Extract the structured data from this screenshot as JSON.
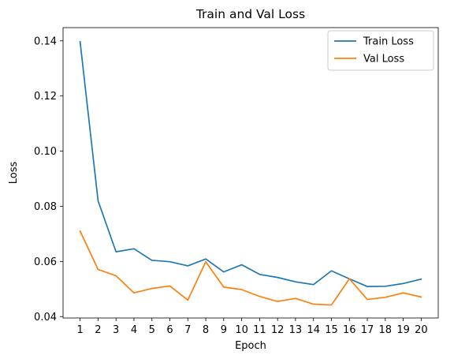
{
  "chart_data": {
    "type": "line",
    "title": "Train and Val Loss",
    "xlabel": "Epoch",
    "ylabel": "Loss",
    "x": [
      1,
      2,
      3,
      4,
      5,
      6,
      7,
      8,
      9,
      10,
      11,
      12,
      13,
      14,
      15,
      16,
      17,
      18,
      19,
      20
    ],
    "x_tick_labels": [
      "1",
      "2",
      "3",
      "4",
      "5",
      "6",
      "7",
      "8",
      "9",
      "10",
      "11",
      "12",
      "13",
      "14",
      "15",
      "16",
      "17",
      "18",
      "19",
      "20"
    ],
    "y_ticks": [
      0.04,
      0.06,
      0.08,
      0.1,
      0.12,
      0.14
    ],
    "y_tick_labels": [
      "0.04",
      "0.06",
      "0.08",
      "0.10",
      "0.12",
      "0.14"
    ],
    "xlim": [
      0.05,
      20.95
    ],
    "ylim": [
      0.0395,
      0.1448
    ],
    "grid": false,
    "legend_position": "top-right",
    "series": [
      {
        "name": "Train Loss",
        "color": "#1f77b4",
        "values": [
          0.1397,
          0.082,
          0.0635,
          0.0646,
          0.0604,
          0.0599,
          0.0584,
          0.0609,
          0.0562,
          0.0588,
          0.0553,
          0.0542,
          0.0526,
          0.0516,
          0.0566,
          0.0537,
          0.0509,
          0.051,
          0.052,
          0.0536
        ]
      },
      {
        "name": "Val Loss",
        "color": "#ff7f0e",
        "values": [
          0.071,
          0.0571,
          0.0548,
          0.0486,
          0.0502,
          0.0511,
          0.046,
          0.0599,
          0.0507,
          0.0498,
          0.0473,
          0.0455,
          0.0466,
          0.0445,
          0.0442,
          0.0537,
          0.0462,
          0.047,
          0.0486,
          0.0471
        ]
      }
    ]
  }
}
